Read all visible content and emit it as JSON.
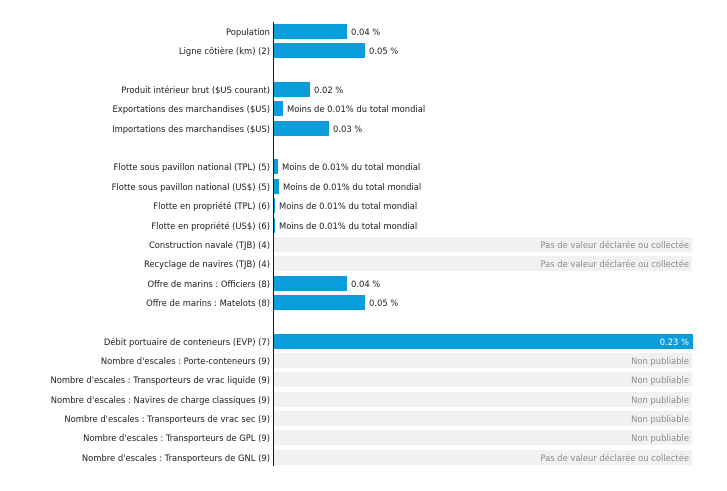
{
  "chart_data": {
    "type": "bar",
    "orientation": "horizontal",
    "unit": "%",
    "xlim": [
      0,
      0.23
    ],
    "bar_color": "#0a9ddb",
    "background_color": "#f1f1f1",
    "categories": [
      "Population",
      "Ligne côtière (km) (2)",
      "",
      "Produit intérieur brut ($US courant)",
      "Exportations des marchandises ($US)",
      "Importations des marchandises ($US)",
      "",
      "Flotte sous pavillon national (TPL) (5)",
      "Flotte sous pavillon national (US$) (5)",
      "Flotte en propriété (TPL) (6)",
      "Flotte en propriété (US$) (6)",
      "Construction navale (TJB) (4)",
      "Recyclage de navires (TJB) (4)",
      "Offre de marins : Officiers (8)",
      "Offre de marins : Matelots (8)",
      "",
      "Débit portuaire de conteneurs (EVP) (7)",
      "Nombre d'escales : Porte-conteneurs (9)",
      "Nombre d'escales : Transporteurs de vrac liquide (9)",
      "Nombre d'escales : Navires de charge classiques (9)",
      "Nombre d'escales : Transporteurs de vrac sec (9)",
      "Nombre d'escales : Transporteurs de GPL (9)",
      "Nombre d'escales : Transporteurs de GNL (9)"
    ],
    "values": [
      0.04,
      0.05,
      null,
      0.02,
      0.005,
      0.03,
      null,
      0.002,
      0.0025,
      0.0005,
      0.0005,
      null,
      null,
      0.04,
      0.05,
      null,
      0.23,
      null,
      null,
      null,
      null,
      null,
      null
    ],
    "labels": [
      "0.04 %",
      "0.05 %",
      "",
      "0.02 %",
      "Moins de 0.01% du total mondial",
      "0.03 %",
      "",
      "Moins de 0.01% du total mondial",
      "Moins de 0.01% du total mondial",
      "Moins de 0.01% du total mondial",
      "Moins de 0.01% du total mondial",
      "Pas de valeur déclarée ou collectée",
      "Pas de valeur déclarée ou collectée",
      "0.04 %",
      "0.05 %",
      "",
      "0.23 %",
      "Non publiable",
      "Non publiable",
      "Non publiable",
      "Non publiable",
      "Non publiable",
      "Pas de valeur déclarée ou collectée"
    ]
  }
}
